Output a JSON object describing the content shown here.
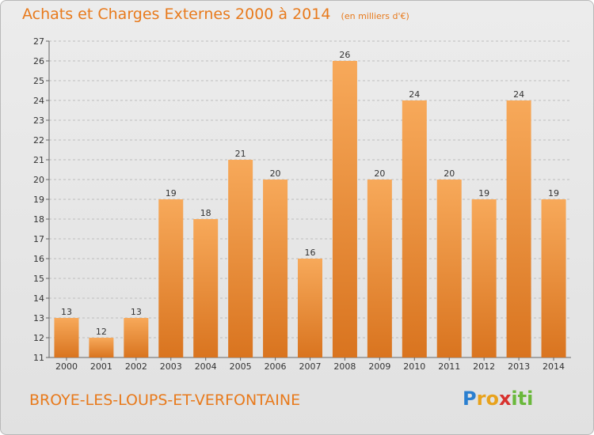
{
  "header": {
    "title": "Achats et Charges Externes 2000 à 2014",
    "unit": "(en milliers d'€)"
  },
  "footer": {
    "commune": "BROYE-LES-LOUPS-ET-VERFONTAINE",
    "logo_text": "Proxiti"
  },
  "colors": {
    "accent": "#e87a1c",
    "bar_top": "#f7a95a",
    "bar_bottom": "#d9741f"
  },
  "chart_data": {
    "type": "bar",
    "title": "Achats et Charges Externes 2000 à 2014",
    "subtitle": "(en milliers d'€)",
    "categories": [
      "2000",
      "2001",
      "2002",
      "2003",
      "2004",
      "2005",
      "2006",
      "2007",
      "2008",
      "2009",
      "2010",
      "2011",
      "2012",
      "2013",
      "2014"
    ],
    "values": [
      13,
      12,
      13,
      19,
      18,
      21,
      20,
      16,
      26,
      20,
      24,
      20,
      19,
      24,
      19
    ],
    "ylim": [
      11,
      27
    ],
    "yticks": [
      11,
      12,
      13,
      14,
      15,
      16,
      17,
      18,
      19,
      20,
      21,
      22,
      23,
      24,
      25,
      26,
      27
    ],
    "grid": "horizontal-dashed",
    "legend": "none"
  }
}
